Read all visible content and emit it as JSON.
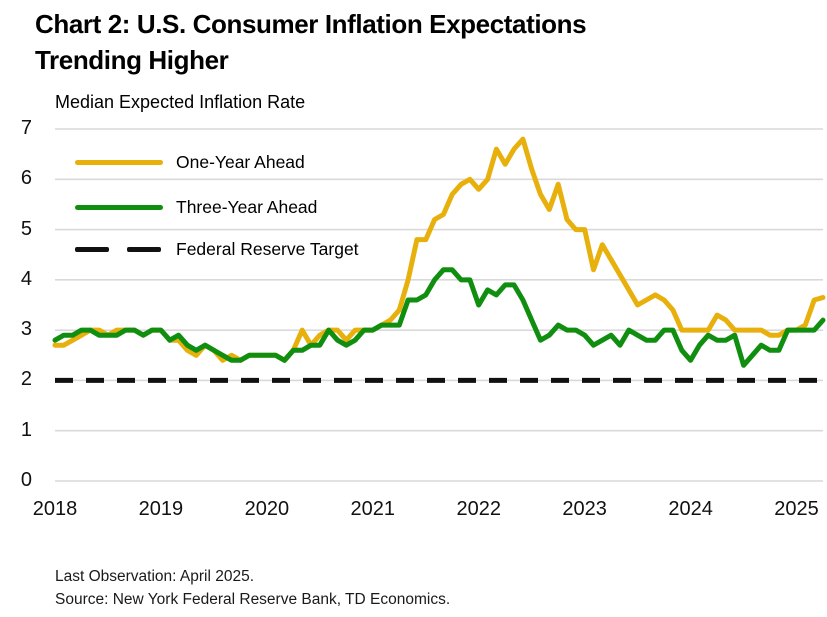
{
  "header": {
    "title_line1": "Chart 2: U.S. Consumer Inflation Expectations",
    "title_line2": "Trending Higher",
    "subtitle": "Median Expected Inflation Rate"
  },
  "footer": {
    "last_observation": "Last Observation: April 2025.",
    "source": "Source: New York Federal Reserve Bank, TD Economics."
  },
  "colors": {
    "gold": "#E8B00C",
    "green": "#108E10",
    "target_black": "#111111",
    "gridline": "#D9D9D9",
    "text": "#000000"
  },
  "chart_data": {
    "type": "line",
    "title": "Median Expected Inflation Rate",
    "x_unit": "monthly",
    "x_start_label": "2018",
    "x_end_label": "2025",
    "x_tick_labels": [
      "2018",
      "2019",
      "2020",
      "2021",
      "2022",
      "2023",
      "2024",
      "2025"
    ],
    "months_per_tick": 12,
    "y_ticks": [
      0,
      1,
      2,
      3,
      4,
      5,
      6,
      7
    ],
    "ylim": [
      0,
      7
    ],
    "grid": "horizontal",
    "legend_position": "inside-top-left",
    "series": [
      {
        "name": "One-Year Ahead",
        "color": "#E8B00C",
        "style": "solid",
        "first_month": "2018-01",
        "last_month": "2025-04",
        "values": [
          2.7,
          2.7,
          2.8,
          2.9,
          3.0,
          3.0,
          2.9,
          3.0,
          3.0,
          3.0,
          2.9,
          3.0,
          3.0,
          2.8,
          2.8,
          2.6,
          2.5,
          2.7,
          2.6,
          2.4,
          2.5,
          2.4,
          2.5,
          2.5,
          2.5,
          2.5,
          2.4,
          2.6,
          3.0,
          2.7,
          2.9,
          3.0,
          3.0,
          2.8,
          3.0,
          3.0,
          3.0,
          3.1,
          3.2,
          3.4,
          4.0,
          4.8,
          4.8,
          5.2,
          5.3,
          5.7,
          5.9,
          6.0,
          5.8,
          6.0,
          6.6,
          6.3,
          6.6,
          6.8,
          6.2,
          5.7,
          5.4,
          5.9,
          5.2,
          5.0,
          5.0,
          4.2,
          4.7,
          4.4,
          4.1,
          3.8,
          3.5,
          3.6,
          3.7,
          3.6,
          3.4,
          3.0,
          3.0,
          3.0,
          3.0,
          3.3,
          3.2,
          3.0,
          3.0,
          3.0,
          3.0,
          2.9,
          2.9,
          3.0,
          3.0,
          3.1,
          3.6,
          3.65
        ]
      },
      {
        "name": "Three-Year Ahead",
        "color": "#108E10",
        "style": "solid",
        "first_month": "2018-01",
        "last_month": "2025-04",
        "values": [
          2.8,
          2.9,
          2.9,
          3.0,
          3.0,
          2.9,
          2.9,
          2.9,
          3.0,
          3.0,
          2.9,
          3.0,
          3.0,
          2.8,
          2.9,
          2.7,
          2.6,
          2.7,
          2.6,
          2.5,
          2.4,
          2.4,
          2.5,
          2.5,
          2.5,
          2.5,
          2.4,
          2.6,
          2.6,
          2.7,
          2.7,
          3.0,
          2.8,
          2.7,
          2.8,
          3.0,
          3.0,
          3.1,
          3.1,
          3.1,
          3.6,
          3.6,
          3.7,
          4.0,
          4.2,
          4.2,
          4.0,
          4.0,
          3.5,
          3.8,
          3.7,
          3.9,
          3.9,
          3.6,
          3.2,
          2.8,
          2.9,
          3.1,
          3.0,
          3.0,
          2.9,
          2.7,
          2.8,
          2.9,
          2.7,
          3.0,
          2.9,
          2.8,
          2.8,
          3.0,
          3.0,
          2.6,
          2.4,
          2.7,
          2.9,
          2.8,
          2.8,
          2.9,
          2.3,
          2.5,
          2.7,
          2.6,
          2.6,
          3.0,
          3.0,
          3.0,
          3.0,
          3.2
        ]
      },
      {
        "name": "Federal Reserve Target",
        "color": "#111111",
        "style": "dashed",
        "constant_value": 2.0
      }
    ]
  }
}
